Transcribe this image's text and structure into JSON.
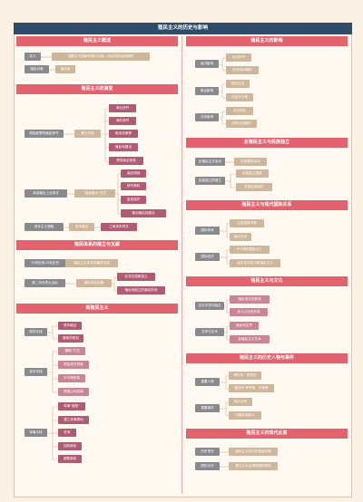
{
  "title": "殖民主义的历史与影响",
  "left": {
    "s1": {
      "title": "殖民主义概述",
      "rows": [
        {
          "k": "定义",
          "v": "强国主义国家对弱小民族、地区的统治和剥削"
        },
        {
          "k": "殖民对象",
          "v": "殖民地"
        }
      ]
    },
    "s2": {
      "title": "殖民主义的演变",
      "g1": {
        "k": "原始积累的殖民掠夺",
        "mid": "暴力手段",
        "items": [
          "商业掠夺",
          "海外掠夺",
          "贩卖奴隶等",
          "殖民地建设",
          "贸易贱买贵卖"
        ]
      },
      "g2": {
        "k": "商品输出工业资本",
        "mid": "\"商品输出\"方式",
        "items": [
          "商品倾销",
          "掠夺原料",
          "投资保护",
          "推动殖民地建设"
        ]
      },
      "g3": {
        "k": "资本主义垄断",
        "mid": "资本输出",
        "items": [
          "工商资本同共"
        ]
      }
    },
    "s3": {
      "title": "殖民体系的建立与瓦解",
      "r1": {
        "k": "19世纪末20世纪初",
        "v": "殖民主义体系的最终形成"
      },
      "r2": {
        "k": "第二次世界大战后",
        "mid": "殖民体系瓦解",
        "items": [
          "亚非拉国家独立",
          "殖民地独立的最后阶段"
        ]
      }
    },
    "s4": {
      "title": "新殖民主义",
      "g1": {
        "k": "新的手段",
        "items": [
          "资本输出",
          "援助的附加"
        ]
      },
      "g2": {
        "k": "经济手段",
        "items": [
          "\"援助\"方式",
          "附加条件贷款",
          "不平等贸易",
          "跨国公司控制"
        ]
      },
      "g3": {
        "k": "军事手段",
        "items": [
          "军事\"援助\"",
          "建立军事基地",
          "驻军",
          "控制政权",
          "颠覆政权"
        ]
      }
    }
  },
  "right": {
    "s1": {
      "title": "殖民主义的影响",
      "groups": [
        {
          "k": "经济影响",
          "items": [
            "经济掠夺",
            "经济结构畸形"
          ]
        },
        {
          "k": "政治影响",
          "items": [
            "政治压迫",
            "社会不平等"
          ]
        },
        {
          "k": "文化影响",
          "items": [
            "文化同化",
            "传统文化破坏"
          ]
        }
      ]
    },
    "s2": {
      "title": "反殖民主义与民族独立",
      "groups": [
        {
          "k": "反殖民主义运动",
          "items": [
            "民族解放运动"
          ]
        },
        {
          "k": "民族独立的建立",
          "items": [
            "民族独立国家",
            "发展民族经济"
          ]
        }
      ]
    },
    "s3": {
      "title": "殖民主义与现代国际关系",
      "groups": [
        {
          "k": "国际体系",
          "items": [
            "主权国家平等",
            "南北关系"
          ]
        },
        {
          "k": "国际经济",
          "items": [
            "不平等的国际分工",
            "经济全球化与新殖民主义"
          ]
        }
      ]
    },
    "s4": {
      "title": "殖民主义与文化",
      "groups": [
        {
          "k": "文化冲突与融合",
          "items": [
            "殖民地文化影响",
            "多元文化的形成"
          ]
        },
        {
          "k": "文学与艺术",
          "items": [
            "殖民地文学",
            "反殖民主义艺术"
          ]
        }
      ]
    },
    "s5": {
      "title": "殖民主义的历史人物与事件",
      "groups": [
        {
          "k": "重要人物",
          "items": [
            "哥伦布、麦哲伦",
            "塞西尔·罗得斯、甘地等"
          ]
        },
        {
          "k": "重要事件",
          "items": [
            "鸦片战争",
            "印度民族起义"
          ]
        }
      ]
    },
    "s6": {
      "title": "殖民主义的现代反思",
      "groups": [
        {
          "k": "历史责任",
          "items": [
            "殖民主义的历史遗留问题"
          ]
        },
        {
          "k": "国际合作",
          "items": [
            "建立公平合理的国际秩序"
          ]
        }
      ]
    }
  }
}
